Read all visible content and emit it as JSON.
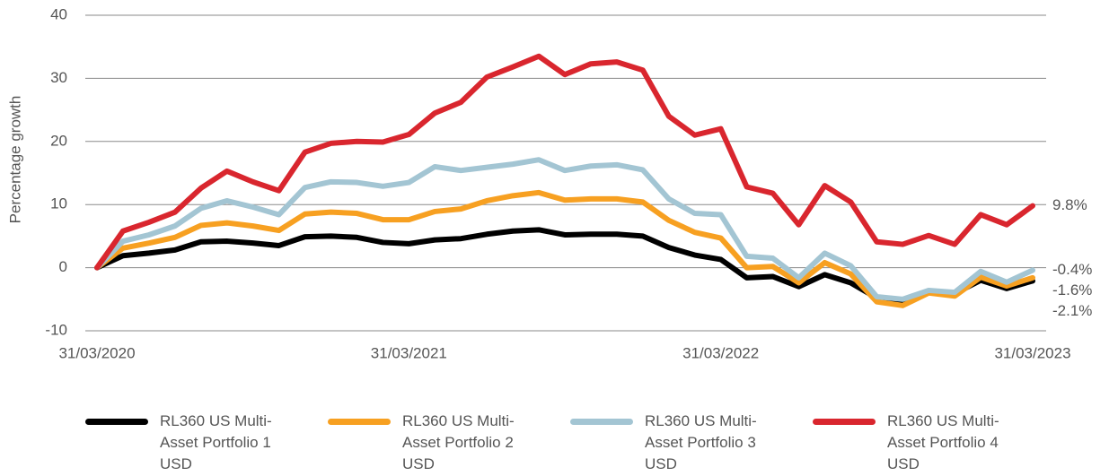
{
  "chart_data": {
    "type": "line",
    "ylabel": "Percentage growth",
    "categories": [
      "31/03/2020",
      null,
      null,
      null,
      null,
      null,
      null,
      null,
      null,
      null,
      null,
      null,
      "31/03/2021",
      null,
      null,
      null,
      null,
      null,
      null,
      null,
      null,
      null,
      null,
      null,
      "31/03/2022",
      null,
      null,
      null,
      null,
      null,
      null,
      null,
      null,
      null,
      null,
      null,
      "31/03/2023"
    ],
    "ylim": [
      -10,
      40
    ],
    "yticks": [
      -10,
      0,
      10,
      20,
      30,
      40
    ],
    "grid": true,
    "series": [
      {
        "name": "RL360 US Multi-Asset Portfolio 1 USD",
        "color": "#000000",
        "end_label": "-2.1%",
        "values": [
          0,
          1.9,
          2.3,
          2.8,
          4.1,
          4.2,
          3.9,
          3.5,
          4.9,
          5.0,
          4.8,
          4.0,
          3.8,
          4.4,
          4.6,
          5.3,
          5.8,
          6.0,
          5.2,
          5.3,
          5.3,
          5.0,
          3.2,
          2.0,
          1.3,
          -1.6,
          -1.4,
          -3.0,
          -1.1,
          -2.4,
          -4.8,
          -5.4,
          -3.9,
          -4.1,
          -2.0,
          -3.3,
          -2.1
        ]
      },
      {
        "name": "RL360 US Multi-Asset Portfolio 2 USD",
        "color": "#f7a021",
        "end_label": "-1.6%",
        "values": [
          0,
          3.1,
          3.9,
          4.8,
          6.7,
          7.1,
          6.6,
          5.9,
          8.5,
          8.8,
          8.6,
          7.6,
          7.6,
          8.9,
          9.3,
          10.6,
          11.4,
          11.9,
          10.7,
          10.9,
          10.9,
          10.4,
          7.5,
          5.6,
          4.7,
          0.0,
          0.2,
          -2.4,
          0.8,
          -1.0,
          -5.4,
          -6.0,
          -4.0,
          -4.5,
          -1.5,
          -2.9,
          -1.6
        ]
      },
      {
        "name": "RL360 US Multi-Asset Portfolio 3 USD",
        "color": "#a3c5d3",
        "end_label": "-0.4%",
        "values": [
          0,
          4.2,
          5.2,
          6.6,
          9.4,
          10.6,
          9.6,
          8.4,
          12.7,
          13.6,
          13.5,
          12.9,
          13.5,
          16.0,
          15.4,
          15.9,
          16.4,
          17.1,
          15.4,
          16.1,
          16.3,
          15.5,
          10.9,
          8.6,
          8.4,
          1.8,
          1.5,
          -1.6,
          2.3,
          0.3,
          -4.6,
          -5.0,
          -3.6,
          -3.9,
          -0.6,
          -2.3,
          -0.4
        ]
      },
      {
        "name": "RL360 US Multi-Asset Portfolio 4 USD",
        "color": "#d9262e",
        "end_label": "9.8%",
        "values": [
          0,
          5.8,
          7.2,
          8.8,
          12.6,
          15.3,
          13.6,
          12.2,
          18.3,
          19.7,
          20.0,
          19.9,
          21.1,
          24.5,
          26.2,
          30.2,
          31.8,
          33.5,
          30.6,
          32.3,
          32.6,
          31.3,
          24.0,
          21.0,
          22.0,
          12.8,
          11.8,
          6.8,
          13.0,
          10.4,
          4.1,
          3.7,
          5.1,
          3.7,
          8.4,
          6.8,
          9.8
        ]
      }
    ]
  }
}
